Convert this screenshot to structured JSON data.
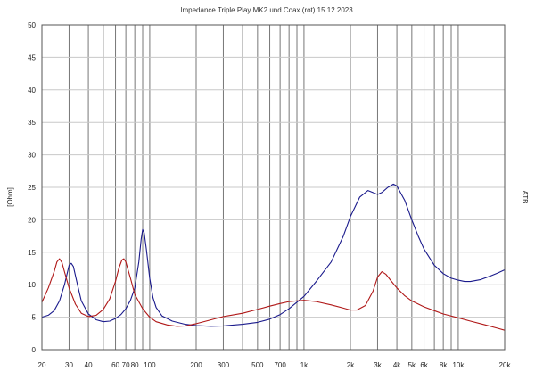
{
  "chart_data": {
    "type": "line",
    "title": "Impedance    Triple Play MK2 und Coax (rot) 15.12.2023",
    "ylabel": "[Ohm]",
    "right_label": "ATB",
    "x_scale": "log",
    "xlim": [
      20,
      20000
    ],
    "ylim": [
      0,
      50
    ],
    "grid": true,
    "x_ticks": [
      {
        "value": 20,
        "label": "20"
      },
      {
        "value": 30,
        "label": "30"
      },
      {
        "value": 40,
        "label": "40"
      },
      {
        "value": 60,
        "label": "60"
      },
      {
        "value": 70,
        "label": "70"
      },
      {
        "value": 80,
        "label": "80"
      },
      {
        "value": 100,
        "label": "100"
      },
      {
        "value": 200,
        "label": "200"
      },
      {
        "value": 300,
        "label": "300"
      },
      {
        "value": 500,
        "label": "500"
      },
      {
        "value": 700,
        "label": "700"
      },
      {
        "value": 1000,
        "label": "1k"
      },
      {
        "value": 2000,
        "label": "2k"
      },
      {
        "value": 3000,
        "label": "3k"
      },
      {
        "value": 4000,
        "label": "4k"
      },
      {
        "value": 5000,
        "label": "5k"
      },
      {
        "value": 6000,
        "label": "6k"
      },
      {
        "value": 8000,
        "label": "8k"
      },
      {
        "value": 10000,
        "label": "10k"
      },
      {
        "value": 20000,
        "label": "20k"
      }
    ],
    "x_gridlines": [
      20,
      30,
      40,
      50,
      60,
      70,
      80,
      90,
      100,
      200,
      300,
      400,
      500,
      600,
      700,
      800,
      900,
      1000,
      2000,
      3000,
      4000,
      5000,
      6000,
      7000,
      8000,
      9000,
      10000,
      20000
    ],
    "y_ticks": [
      0,
      5,
      10,
      15,
      20,
      25,
      30,
      35,
      40,
      45,
      50
    ],
    "series": [
      {
        "color": "#1a1a8c",
        "points": [
          [
            20,
            5.0
          ],
          [
            22,
            5.3
          ],
          [
            24,
            6.0
          ],
          [
            26,
            7.5
          ],
          [
            28,
            10.0
          ],
          [
            30,
            13.0
          ],
          [
            31,
            13.3
          ],
          [
            32,
            12.8
          ],
          [
            34,
            10.0
          ],
          [
            36,
            7.5
          ],
          [
            40,
            5.5
          ],
          [
            45,
            4.6
          ],
          [
            50,
            4.3
          ],
          [
            55,
            4.4
          ],
          [
            60,
            4.8
          ],
          [
            65,
            5.4
          ],
          [
            70,
            6.3
          ],
          [
            75,
            7.6
          ],
          [
            80,
            9.5
          ],
          [
            85,
            13.5
          ],
          [
            88,
            17.0
          ],
          [
            90,
            18.5
          ],
          [
            92,
            18.0
          ],
          [
            95,
            15.5
          ],
          [
            100,
            11.0
          ],
          [
            105,
            8.0
          ],
          [
            110,
            6.5
          ],
          [
            120,
            5.2
          ],
          [
            140,
            4.4
          ],
          [
            170,
            3.9
          ],
          [
            200,
            3.7
          ],
          [
            250,
            3.6
          ],
          [
            300,
            3.65
          ],
          [
            400,
            3.9
          ],
          [
            500,
            4.2
          ],
          [
            600,
            4.7
          ],
          [
            700,
            5.4
          ],
          [
            800,
            6.3
          ],
          [
            1000,
            8.2
          ],
          [
            1200,
            10.5
          ],
          [
            1500,
            13.5
          ],
          [
            1800,
            17.5
          ],
          [
            2000,
            20.5
          ],
          [
            2300,
            23.5
          ],
          [
            2600,
            24.5
          ],
          [
            3000,
            23.9
          ],
          [
            3200,
            24.2
          ],
          [
            3500,
            25.0
          ],
          [
            3800,
            25.5
          ],
          [
            4000,
            25.2
          ],
          [
            4500,
            23.0
          ],
          [
            5000,
            20.0
          ],
          [
            5500,
            17.5
          ],
          [
            6000,
            15.5
          ],
          [
            7000,
            13.0
          ],
          [
            8000,
            11.7
          ],
          [
            9000,
            11.0
          ],
          [
            10000,
            10.7
          ],
          [
            11000,
            10.5
          ],
          [
            12000,
            10.5
          ],
          [
            14000,
            10.8
          ],
          [
            16000,
            11.3
          ],
          [
            18000,
            11.8
          ],
          [
            20000,
            12.3
          ]
        ]
      },
      {
        "color": "#b01818",
        "points": [
          [
            20,
            7.3
          ],
          [
            22,
            9.5
          ],
          [
            24,
            12.0
          ],
          [
            25,
            13.5
          ],
          [
            26,
            14.0
          ],
          [
            27,
            13.4
          ],
          [
            28,
            12.0
          ],
          [
            30,
            9.5
          ],
          [
            33,
            7.0
          ],
          [
            36,
            5.6
          ],
          [
            40,
            5.1
          ],
          [
            45,
            5.3
          ],
          [
            50,
            6.2
          ],
          [
            55,
            7.8
          ],
          [
            60,
            10.5
          ],
          [
            63,
            12.5
          ],
          [
            66,
            13.8
          ],
          [
            68,
            14.0
          ],
          [
            70,
            13.5
          ],
          [
            75,
            11.0
          ],
          [
            80,
            8.5
          ],
          [
            90,
            6.3
          ],
          [
            100,
            5.0
          ],
          [
            110,
            4.3
          ],
          [
            130,
            3.8
          ],
          [
            150,
            3.6
          ],
          [
            170,
            3.65
          ],
          [
            200,
            4.0
          ],
          [
            250,
            4.6
          ],
          [
            300,
            5.1
          ],
          [
            400,
            5.6
          ],
          [
            500,
            6.2
          ],
          [
            600,
            6.7
          ],
          [
            700,
            7.1
          ],
          [
            800,
            7.4
          ],
          [
            1000,
            7.6
          ],
          [
            1200,
            7.4
          ],
          [
            1500,
            6.9
          ],
          [
            1800,
            6.4
          ],
          [
            2000,
            6.1
          ],
          [
            2200,
            6.1
          ],
          [
            2500,
            6.8
          ],
          [
            2800,
            9.0
          ],
          [
            3000,
            11.2
          ],
          [
            3200,
            12.0
          ],
          [
            3400,
            11.6
          ],
          [
            3700,
            10.5
          ],
          [
            4000,
            9.5
          ],
          [
            4500,
            8.3
          ],
          [
            5000,
            7.5
          ],
          [
            6000,
            6.6
          ],
          [
            7000,
            6.0
          ],
          [
            8000,
            5.5
          ],
          [
            10000,
            4.9
          ],
          [
            12000,
            4.4
          ],
          [
            15000,
            3.8
          ],
          [
            18000,
            3.3
          ],
          [
            20000,
            3.0
          ]
        ]
      }
    ]
  }
}
